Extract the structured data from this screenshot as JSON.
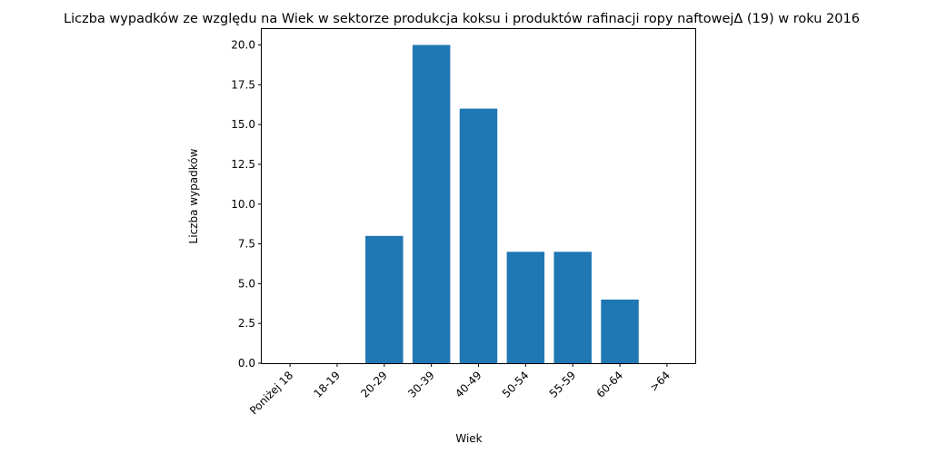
{
  "chart_data": {
    "type": "bar",
    "title": "Liczba wypadków ze względu na Wiek w sektorze produkcja koksu i produktów rafinacji ropy naftowejΔ (19) w roku 2016",
    "xlabel": "Wiek",
    "ylabel": "Liczba wypadków",
    "categories": [
      "Poniżej 18",
      "18-19",
      "20-29",
      "30-39",
      "40-49",
      "50-54",
      "55-59",
      "60-64",
      ">64"
    ],
    "values": [
      0,
      0,
      8,
      20,
      16,
      7,
      7,
      4,
      0
    ],
    "ylim": [
      0,
      21
    ],
    "yticks": [
      0.0,
      2.5,
      5.0,
      7.5,
      10.0,
      12.5,
      15.0,
      17.5,
      20.0
    ],
    "ytick_labels": [
      "0.0",
      "2.5",
      "5.0",
      "7.5",
      "10.0",
      "12.5",
      "15.0",
      "17.5",
      "20.0"
    ],
    "bar_color": "#1f77b4",
    "grid": false,
    "legend": "none"
  }
}
